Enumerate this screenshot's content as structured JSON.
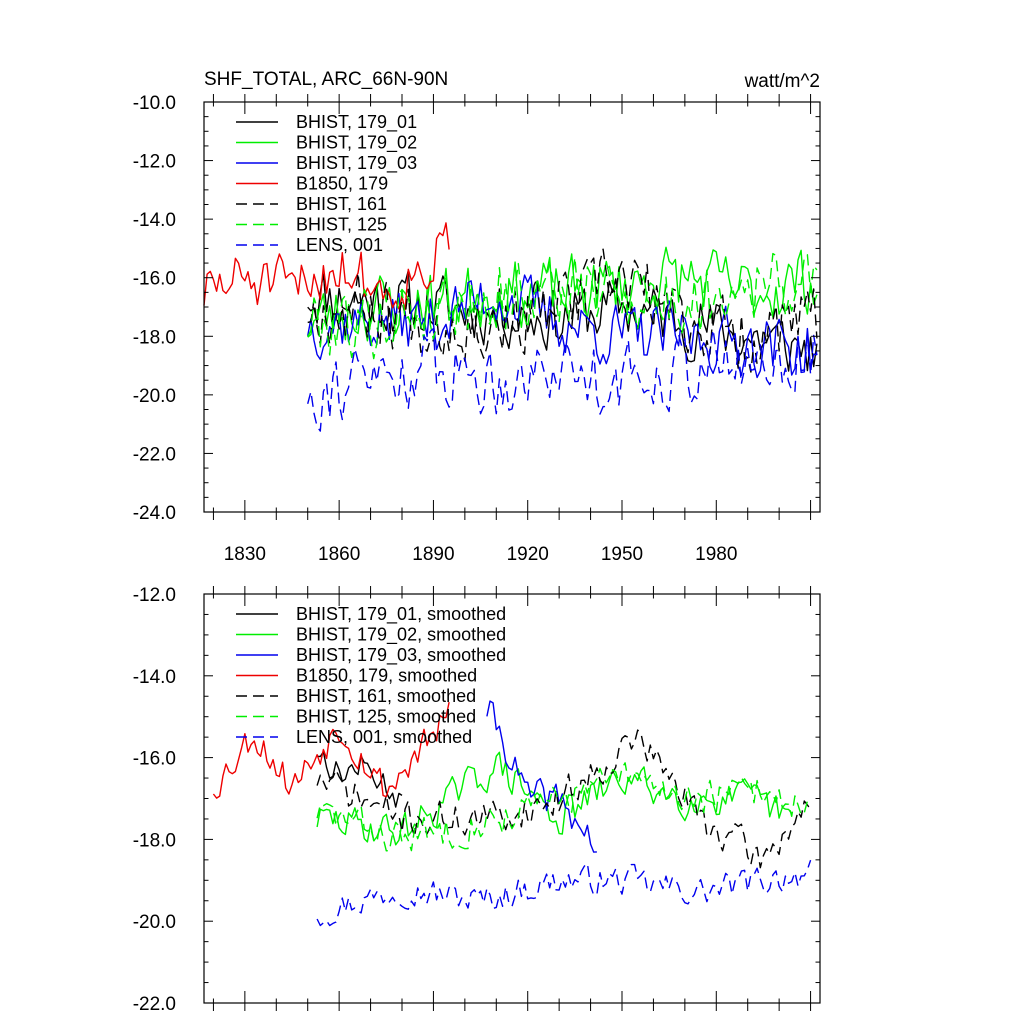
{
  "chart_data": [
    {
      "type": "line",
      "title": "SHF_TOTAL, ARC_66N-90N",
      "units": "watt/m^2",
      "xlim": [
        1817,
        2013
      ],
      "ylim": [
        -24.0,
        -10.0
      ],
      "yticks": [
        -24.0,
        -22.0,
        -20.0,
        -18.0,
        -16.0,
        -14.0,
        -12.0,
        -10.0
      ],
      "ytick_labels": [
        "-24.0",
        "-22.0",
        "-20.0",
        "-18.0",
        "-16.0",
        "-14.0",
        "-12.0",
        "-10.0"
      ],
      "xticks": [
        1830,
        1860,
        1890,
        1920,
        1950,
        1980
      ],
      "xtick_labels": [
        "1830",
        "1860",
        "1890",
        "1920",
        "1950",
        "1980"
      ],
      "legend_position": "top-left",
      "series": [
        {
          "name": "BHIST, 179_01",
          "color": "#000000",
          "dash": "solid",
          "gen": {
            "start": 1850,
            "end": 2012,
            "base": -17.0,
            "trend": 0,
            "amp": 1.5,
            "seed": 11
          },
          "x": [
            1850,
            1870,
            1890,
            1910,
            1930,
            1950,
            1970,
            1990,
            2012
          ],
          "values": [
            -16.5,
            -16.8,
            -17.0,
            -17.2,
            -17.4,
            -17.0,
            -17.5,
            -18.0,
            -18.5
          ]
        },
        {
          "name": "BHIST, 179_02",
          "color": "#00ee00",
          "dash": "solid",
          "gen": {
            "start": 1850,
            "end": 2012,
            "base": -17.0,
            "trend": 0.3,
            "amp": 1.6,
            "seed": 23
          },
          "x": [
            1850,
            1870,
            1890,
            1910,
            1930,
            1950,
            1970,
            1990,
            2012
          ],
          "values": [
            -17.5,
            -17.0,
            -16.8,
            -16.5,
            -16.5,
            -16.2,
            -16.0,
            -16.5,
            -16.0
          ]
        },
        {
          "name": "BHIST, 179_03",
          "color": "#0000ee",
          "dash": "solid",
          "gen": {
            "start": 1850,
            "end": 2012,
            "base": -17.6,
            "trend": -0.3,
            "amp": 1.5,
            "seed": 37
          },
          "x": [
            1850,
            1870,
            1890,
            1910,
            1930,
            1950,
            1970,
            1990,
            2012
          ],
          "values": [
            -17.5,
            -17.5,
            -17.5,
            -16.5,
            -17.5,
            -18.0,
            -18.0,
            -18.2,
            -18.5
          ]
        },
        {
          "name": "B1850, 179",
          "color": "#ee0000",
          "dash": "solid",
          "gen": {
            "start": 1817,
            "end": 1895,
            "base": -16.4,
            "trend": 0.3,
            "amp": 1.4,
            "seed": 51
          },
          "x": [
            1817,
            1830,
            1845,
            1860,
            1875,
            1895
          ],
          "values": [
            -16.5,
            -16.0,
            -16.5,
            -15.5,
            -16.5,
            -15.0
          ]
        },
        {
          "name": "BHIST, 161",
          "color": "#000000",
          "dash": "dashed",
          "gen": {
            "start": 1850,
            "end": 2012,
            "base": -17.0,
            "trend": -0.2,
            "amp": 1.7,
            "seed": 67
          },
          "x": [
            1850,
            1870,
            1890,
            1910,
            1930,
            1950,
            1970,
            1990,
            2012
          ],
          "values": [
            -17.0,
            -17.0,
            -17.5,
            -17.5,
            -17.0,
            -16.0,
            -17.5,
            -18.0,
            -17.5
          ]
        },
        {
          "name": "BHIST, 125",
          "color": "#00ee00",
          "dash": "dashed",
          "gen": {
            "start": 1850,
            "end": 2012,
            "base": -17.0,
            "trend": 0.4,
            "amp": 1.7,
            "seed": 79
          },
          "x": [
            1850,
            1870,
            1890,
            1910,
            1930,
            1950,
            1970,
            1990,
            2012
          ],
          "values": [
            -17.5,
            -17.5,
            -17.0,
            -16.5,
            -16.5,
            -16.5,
            -17.0,
            -16.0,
            -16.5
          ]
        },
        {
          "name": "LENS, 001",
          "color": "#0000ee",
          "dash": "dashed",
          "gen": {
            "start": 1850,
            "end": 2012,
            "base": -19.5,
            "trend": 0.6,
            "amp": 1.7,
            "seed": 91
          },
          "x": [
            1850,
            1870,
            1890,
            1910,
            1930,
            1950,
            1970,
            1990,
            2012
          ],
          "values": [
            -19.8,
            -19.5,
            -19.0,
            -19.5,
            -19.0,
            -19.5,
            -19.0,
            -19.0,
            -18.5
          ]
        }
      ]
    },
    {
      "type": "line",
      "title": "",
      "xlim": [
        1817,
        2013
      ],
      "ylim": [
        -22.0,
        -12.0
      ],
      "yticks": [
        -22.0,
        -20.0,
        -18.0,
        -16.0,
        -14.0,
        -12.0
      ],
      "ytick_labels": [
        "-22.0",
        "-20.0",
        "-18.0",
        "-16.0",
        "-14.0",
        "-12.0"
      ],
      "xticks": [
        1830,
        1860,
        1890,
        1920,
        1950,
        1980
      ],
      "legend_position": "top-left",
      "series": [
        {
          "name": "BHIST, 179_01, smoothed",
          "color": "#000000",
          "dash": "solid",
          "gen": {
            "start": 1853,
            "end": 1880,
            "base": -16.6,
            "trend": -0.4,
            "amp": 0.5,
            "seed": 13
          },
          "x": [
            1853,
            1860,
            1867,
            1874,
            1880
          ],
          "values": [
            -15.8,
            -16.4,
            -16.2,
            -16.6,
            -17.0
          ]
        },
        {
          "name": "BHIST, 179_02, smoothed",
          "color": "#00ee00",
          "dash": "solid",
          "gen": {
            "start": 1853,
            "end": 2004,
            "base": -17.1,
            "trend": 0.2,
            "amp": 0.6,
            "seed": 29
          },
          "x": [
            1853,
            1880,
            1910,
            1930,
            1950,
            1970,
            1990,
            2004
          ],
          "values": [
            -17.5,
            -17.8,
            -16.2,
            -17.5,
            -16.5,
            -17.0,
            -17.0,
            -17.5
          ]
        },
        {
          "name": "BHIST, 179_03, smoothed",
          "color": "#0000ee",
          "dash": "solid",
          "gen": {
            "start": 1907,
            "end": 1942,
            "base": -16.6,
            "trend": -0.9,
            "amp": 0.6,
            "seed": 41
          },
          "x": [
            1907,
            1912,
            1920,
            1930,
            1942
          ],
          "values": [
            -14.8,
            -15.5,
            -17.0,
            -17.0,
            -18.2
          ]
        },
        {
          "name": "B1850, 179, smoothed",
          "color": "#ee0000",
          "dash": "solid",
          "gen": {
            "start": 1820,
            "end": 1895,
            "base": -16.2,
            "trend": 0.5,
            "amp": 0.6,
            "seed": 53
          },
          "x": [
            1820,
            1833,
            1845,
            1860,
            1875,
            1895
          ],
          "values": [
            -16.7,
            -15.4,
            -16.7,
            -15.2,
            -16.8,
            -15.0
          ]
        },
        {
          "name": "BHIST, 161, smoothed",
          "color": "#000000",
          "dash": "dashed",
          "gen": {
            "start": 1853,
            "end": 2010,
            "base": -17.3,
            "trend": -0.3,
            "amp": 0.6,
            "seed": 71
          },
          "x": [
            1853,
            1880,
            1910,
            1930,
            1955,
            1975,
            1995,
            2010
          ],
          "values": [
            -16.5,
            -17.5,
            -17.5,
            -17.0,
            -15.5,
            -17.5,
            -18.5,
            -17.0
          ]
        },
        {
          "name": "BHIST, 125, smoothed",
          "color": "#00ee00",
          "dash": "dashed",
          "gen": {
            "start": 1853,
            "end": 2010,
            "base": -17.4,
            "trend": 0.6,
            "amp": 0.6,
            "seed": 83
          },
          "x": [
            1853,
            1880,
            1910,
            1930,
            1950,
            1975,
            1995,
            2010
          ],
          "values": [
            -17.3,
            -18.0,
            -17.5,
            -17.0,
            -16.5,
            -17.0,
            -16.8,
            -17.2
          ]
        },
        {
          "name": "LENS, 001, smoothed",
          "color": "#0000ee",
          "dash": "dashed",
          "gen": {
            "start": 1853,
            "end": 2010,
            "base": -19.5,
            "trend": 0.6,
            "amp": 0.5,
            "seed": 97
          },
          "x": [
            1853,
            1880,
            1905,
            1930,
            1950,
            1975,
            1995,
            2010
          ],
          "values": [
            -19.8,
            -19.2,
            -19.5,
            -19.0,
            -19.0,
            -19.3,
            -19.0,
            -18.8
          ]
        }
      ]
    }
  ]
}
